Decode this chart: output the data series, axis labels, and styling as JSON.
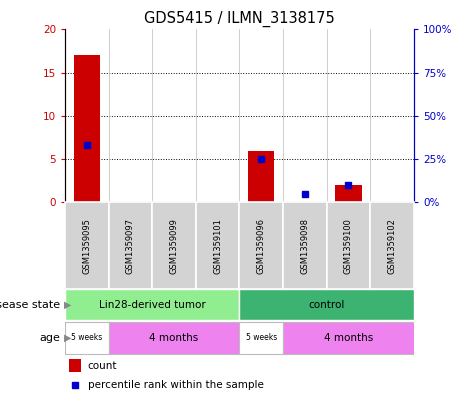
{
  "title": "GDS5415 / ILMN_3138175",
  "samples": [
    "GSM1359095",
    "GSM1359097",
    "GSM1359099",
    "GSM1359101",
    "GSM1359096",
    "GSM1359098",
    "GSM1359100",
    "GSM1359102"
  ],
  "red_counts": [
    17,
    0,
    0,
    0,
    6,
    0,
    2,
    0
  ],
  "blue_percentiles": [
    33,
    0,
    0,
    0,
    25,
    5,
    10,
    0
  ],
  "ylim_left": [
    0,
    20
  ],
  "ylim_right": [
    0,
    100
  ],
  "yticks_left": [
    0,
    5,
    10,
    15,
    20
  ],
  "yticks_right": [
    0,
    25,
    50,
    75,
    100
  ],
  "ytick_labels_left": [
    "0",
    "5",
    "10",
    "15",
    "20"
  ],
  "ytick_labels_right": [
    "0%",
    "25%",
    "50%",
    "75%",
    "100%"
  ],
  "disease_groups": [
    {
      "label": "Lin28-derived tumor",
      "start": 0,
      "end": 4,
      "color": "#90EE90"
    },
    {
      "label": "control",
      "start": 4,
      "end": 8,
      "color": "#3CB371"
    }
  ],
  "age_groups": [
    {
      "label": "5 weeks",
      "start": 0,
      "end": 1,
      "color": "#ffffff"
    },
    {
      "label": "4 months",
      "start": 1,
      "end": 4,
      "color": "#EE82EE"
    },
    {
      "label": "5 weeks",
      "start": 4,
      "end": 5,
      "color": "#ffffff"
    },
    {
      "label": "4 months",
      "start": 5,
      "end": 8,
      "color": "#EE82EE"
    }
  ],
  "legend": [
    {
      "label": "count",
      "color": "#CC0000"
    },
    {
      "label": "percentile rank within the sample",
      "color": "#0000CC"
    }
  ],
  "bar_color": "#CC0000",
  "dot_color": "#0000CC",
  "annotation_row1_label": "disease state",
  "annotation_row2_label": "age",
  "fig_bg": "#ffffff"
}
